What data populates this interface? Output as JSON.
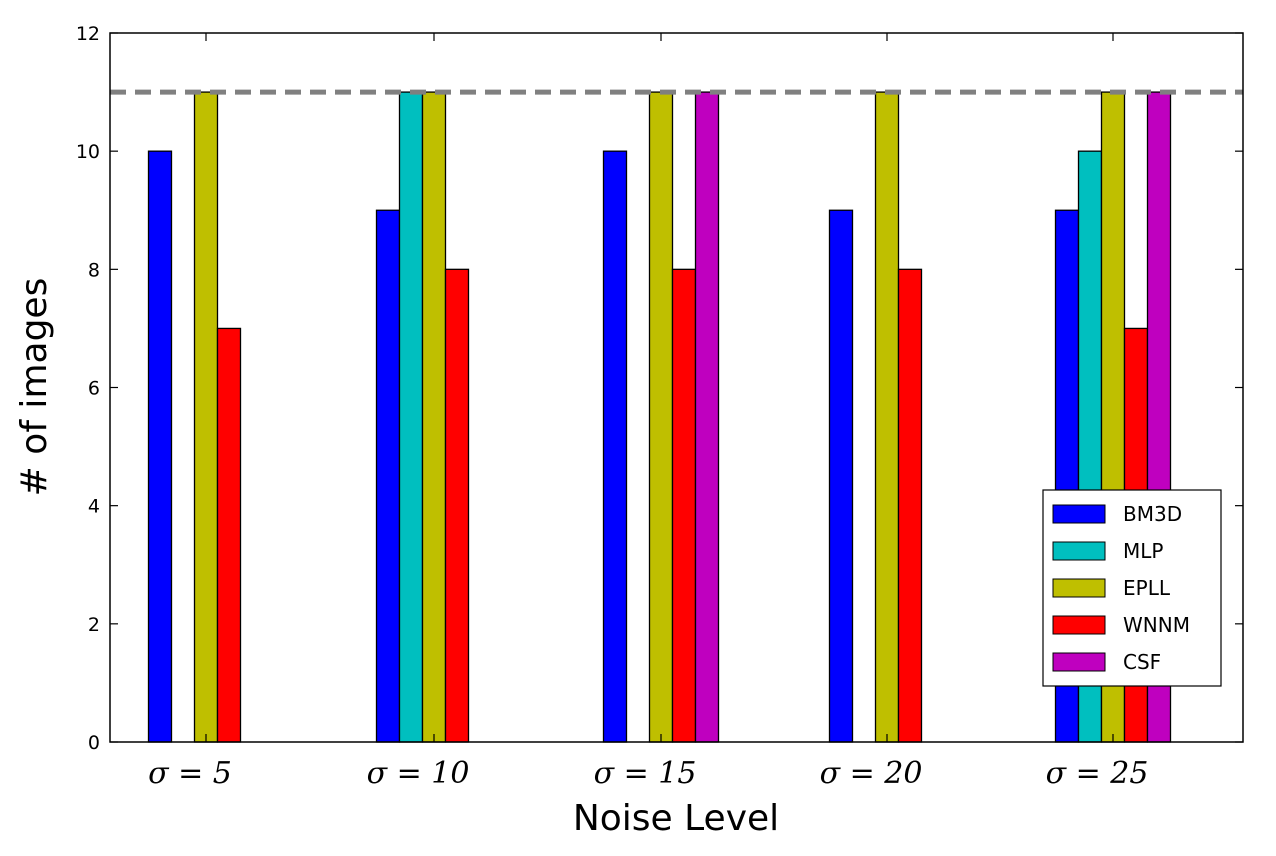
{
  "chart_data": {
    "type": "bar",
    "categories": [
      "σ = 5",
      "σ = 10",
      "σ = 15",
      "σ = 20",
      "σ = 25"
    ],
    "series": [
      {
        "name": "BM3D",
        "color": "#0000ff",
        "values": [
          10,
          9,
          10,
          9,
          9
        ]
      },
      {
        "name": "MLP",
        "color": "#00bfbf",
        "values": [
          0,
          11,
          0,
          0,
          10
        ]
      },
      {
        "name": "EPLL",
        "color": "#bfbf00",
        "values": [
          11,
          11,
          11,
          11,
          11
        ]
      },
      {
        "name": "WNNM",
        "color": "#ff0000",
        "values": [
          7,
          8,
          8,
          8,
          7
        ]
      },
      {
        "name": "CSF",
        "color": "#bf00bf",
        "values": [
          0,
          0,
          11,
          0,
          11
        ]
      }
    ],
    "xlabel": "Noise Level",
    "ylabel": "# of images",
    "ylim": [
      0,
      12
    ],
    "yticks": [
      "0",
      "2",
      "4",
      "6",
      "8",
      "10",
      "12"
    ],
    "reference_line": {
      "value": 11,
      "style": "dashed",
      "color": "#808080"
    },
    "legend_position": "lower-right",
    "grid": false
  }
}
